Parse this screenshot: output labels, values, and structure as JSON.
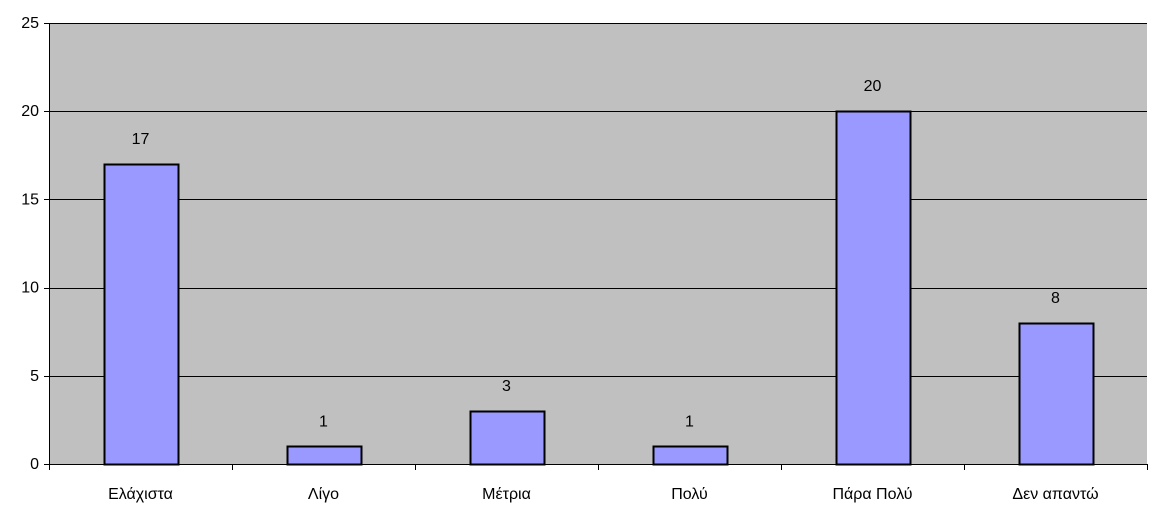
{
  "chart_data": {
    "type": "bar",
    "categories": [
      "Ελάχιστα",
      "Λίγο",
      "Μέτρια",
      "Πολύ",
      "Πάρα Πολύ",
      "Δεν απαντώ"
    ],
    "values": [
      17,
      1,
      3,
      1,
      20,
      8
    ],
    "data_labels": [
      "17",
      "1",
      "3",
      "1",
      "20",
      "8"
    ],
    "title": "",
    "xlabel": "",
    "ylabel": "",
    "ylim": [
      0,
      25
    ],
    "yticks": [
      0,
      5,
      10,
      15,
      20,
      25
    ],
    "ytick_labels": [
      "0",
      "5",
      "10",
      "15",
      "20",
      "25"
    ],
    "grid": true,
    "legend": "none",
    "colors": {
      "bar_fill": "#9999FF",
      "bar_stroke": "#000000",
      "plot_background": "#C0C0C0",
      "gridline": "#000000"
    }
  }
}
